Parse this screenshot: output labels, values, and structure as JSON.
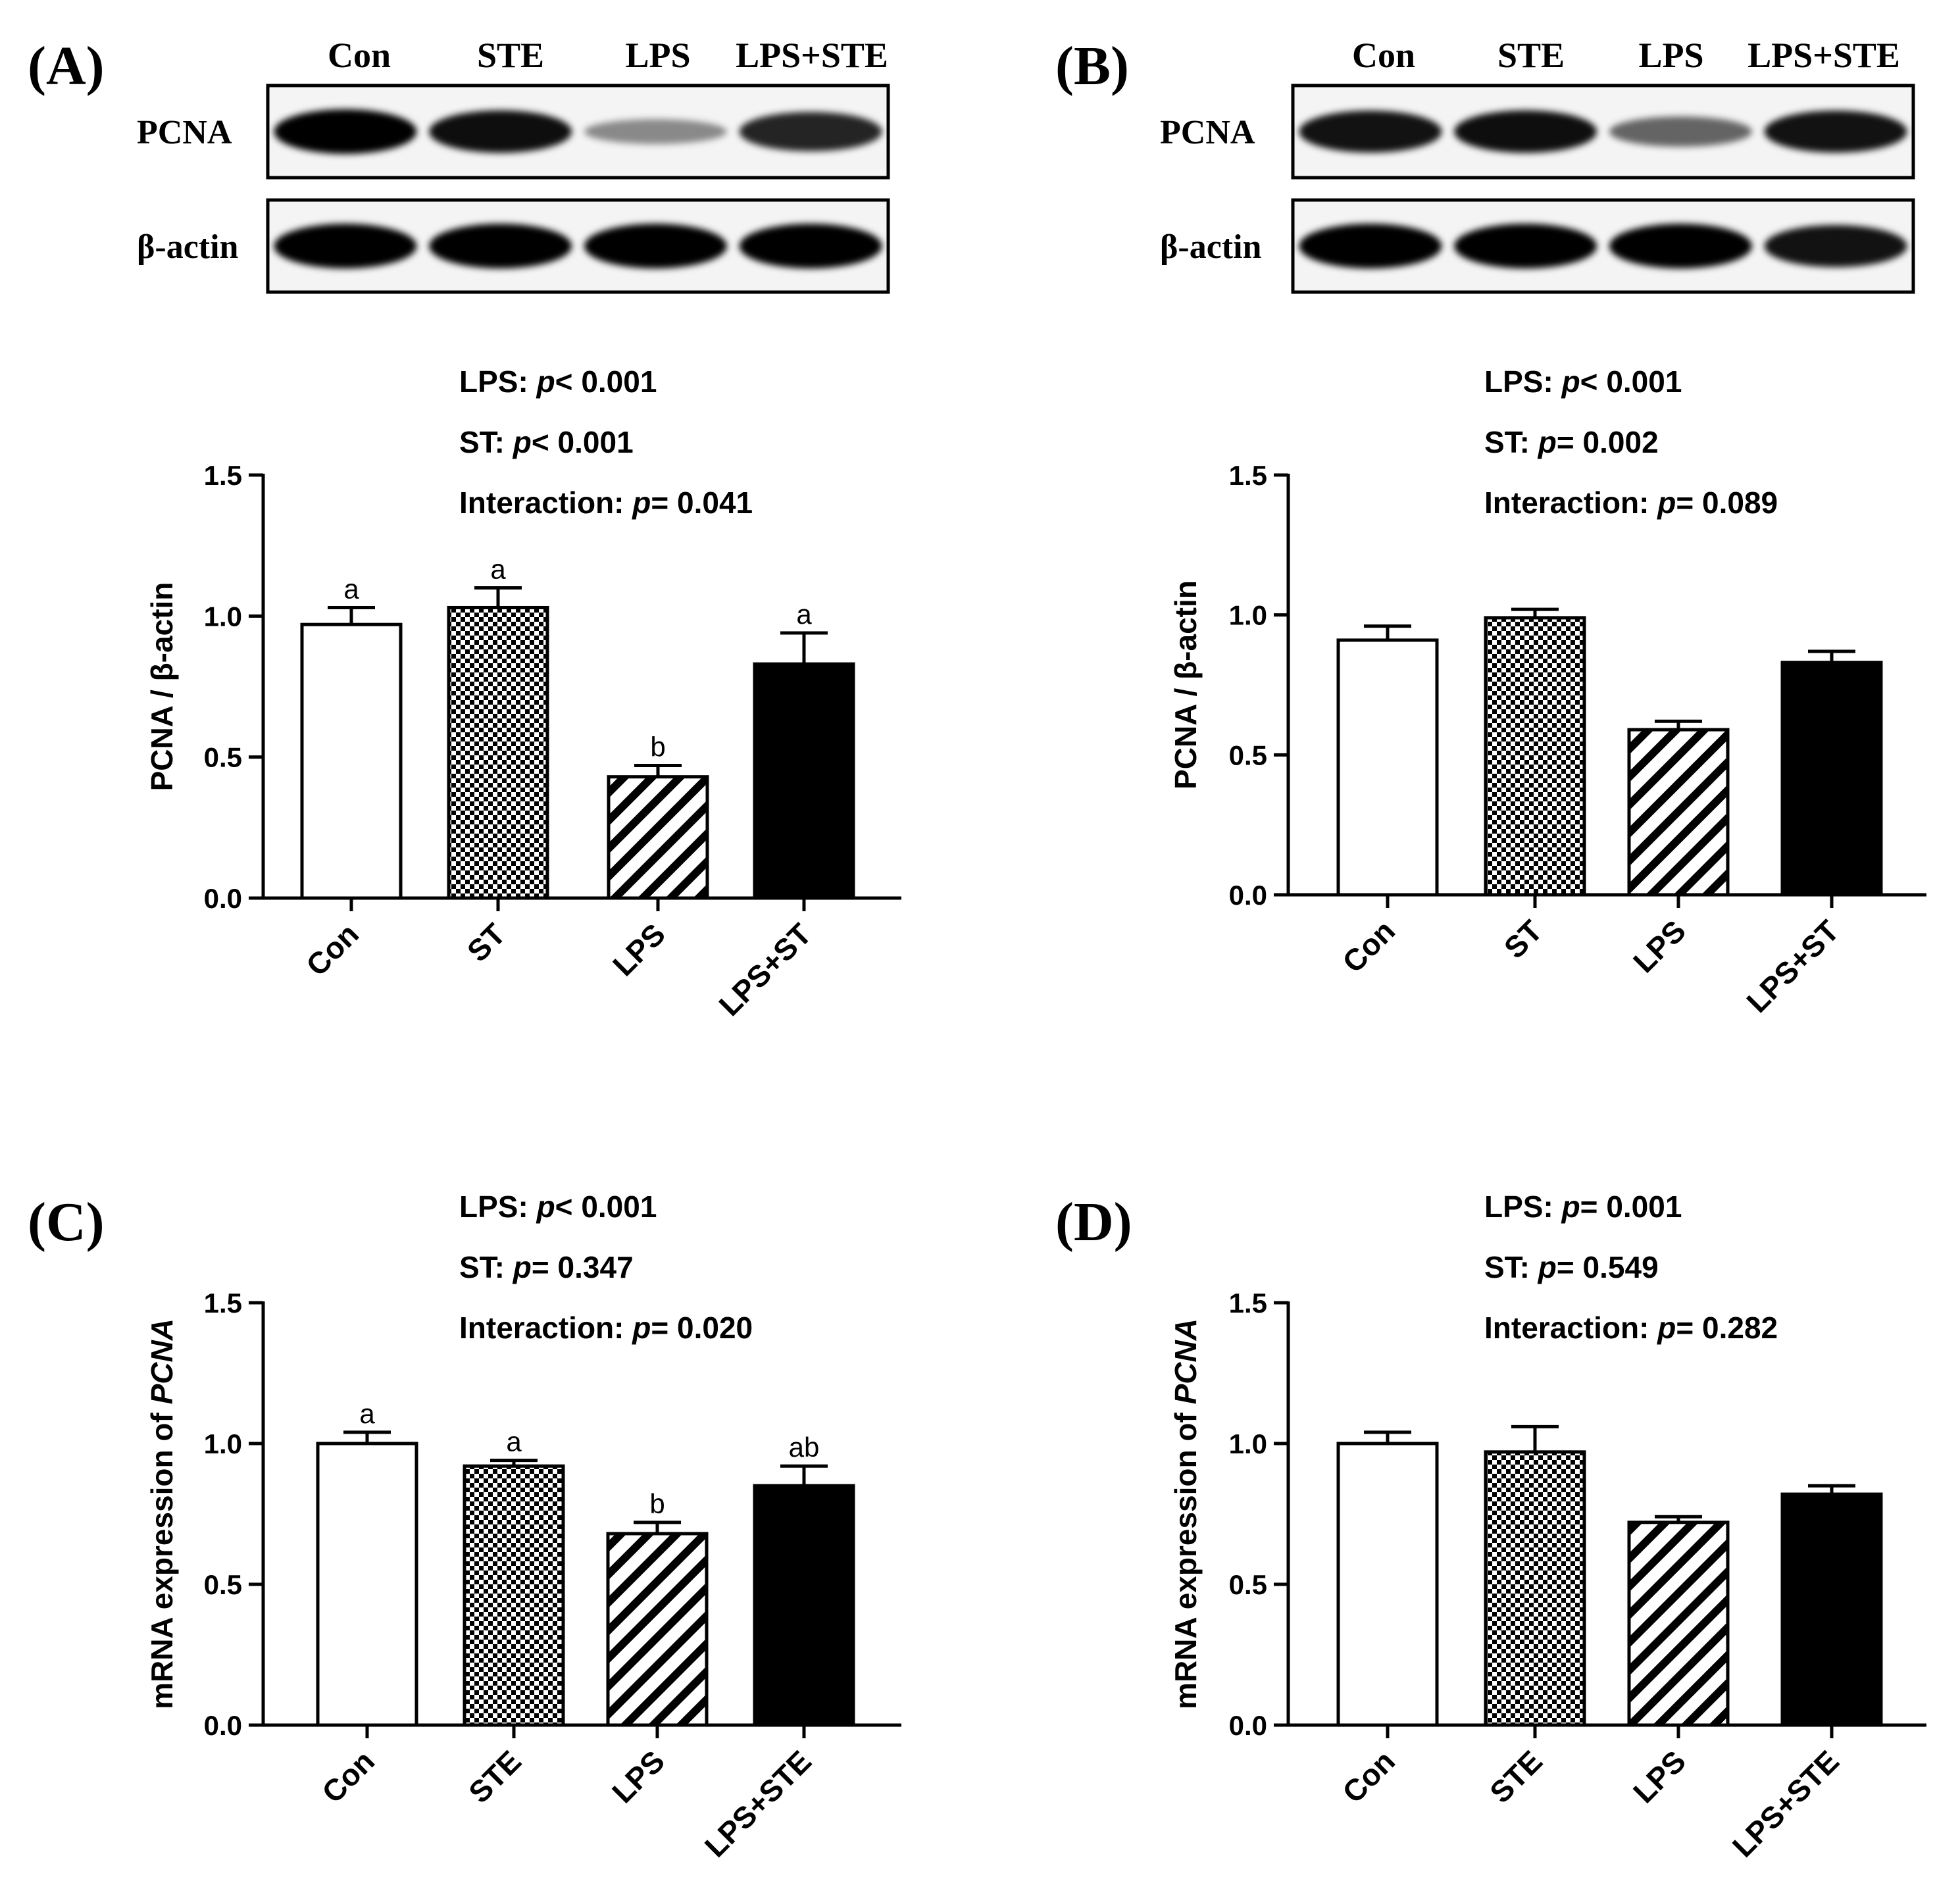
{
  "panels": [
    {
      "id": "A",
      "label": "(A)",
      "blot": {
        "lanes": [
          "Con",
          "STE",
          "LPS",
          "LPS+STE"
        ],
        "rows": [
          {
            "label": "PCNA",
            "intensity": [
              1.0,
              0.92,
              0.25,
              0.8
            ]
          },
          {
            "label": "β-actin",
            "intensity": [
              1.0,
              1.0,
              1.0,
              1.0
            ]
          }
        ]
      },
      "stats": [
        {
          "key": "LPS: ",
          "italic": "p",
          "val": "< 0.001"
        },
        {
          "key": "ST: ",
          "italic": "p",
          "val": "< 0.001"
        },
        {
          "key": "Interaction: ",
          "italic": "p",
          "val": "= 0.041"
        }
      ],
      "chart_data": {
        "type": "bar",
        "ylabel_parts": [
          {
            "t": "PCNA / β-actin",
            "i": false
          }
        ],
        "ylim": [
          0,
          1.5
        ],
        "yticks": [
          "0.0",
          "0.5",
          "1.0",
          "1.5"
        ],
        "categories": [
          "Con",
          "ST",
          "LPS",
          "LPS+ST"
        ],
        "values": [
          0.97,
          1.03,
          0.43,
          0.83
        ],
        "errors": [
          0.06,
          0.07,
          0.04,
          0.11
        ],
        "letters": [
          "a",
          "a",
          "b",
          "a"
        ],
        "patterns": [
          "white",
          "checker",
          "stripe",
          "black"
        ]
      }
    },
    {
      "id": "B",
      "label": "(B)",
      "blot": {
        "lanes": [
          "Con",
          "STE",
          "LPS",
          "LPS+STE"
        ],
        "rows": [
          {
            "label": "PCNA",
            "intensity": [
              0.9,
              0.92,
              0.45,
              0.9
            ]
          },
          {
            "label": "β-actin",
            "intensity": [
              1.0,
              1.0,
              1.0,
              0.9
            ]
          }
        ]
      },
      "stats": [
        {
          "key": "LPS: ",
          "italic": "p",
          "val": "< 0.001"
        },
        {
          "key": "ST: ",
          "italic": "p",
          "val": "= 0.002"
        },
        {
          "key": "Interaction: ",
          "italic": "p",
          "val": "= 0.089"
        }
      ],
      "chart_data": {
        "type": "bar",
        "ylabel_parts": [
          {
            "t": "PCNA / β-actin",
            "i": false
          }
        ],
        "ylim": [
          0,
          1.5
        ],
        "yticks": [
          "0.0",
          "0.5",
          "1.0",
          "1.5"
        ],
        "categories": [
          "Con",
          "ST",
          "LPS",
          "LPS+ST"
        ],
        "values": [
          0.91,
          0.99,
          0.59,
          0.83
        ],
        "errors": [
          0.05,
          0.03,
          0.03,
          0.04
        ],
        "letters": [
          "",
          "",
          "",
          ""
        ],
        "patterns": [
          "white",
          "checker",
          "stripe",
          "black"
        ]
      }
    },
    {
      "id": "C",
      "label": "(C)",
      "stats": [
        {
          "key": "LPS: ",
          "italic": "p",
          "val": "< 0.001"
        },
        {
          "key": "ST: ",
          "italic": "p",
          "val": "= 0.347"
        },
        {
          "key": "Interaction: ",
          "italic": "p",
          "val": "= 0.020"
        }
      ],
      "chart_data": {
        "type": "bar",
        "ylabel_parts": [
          {
            "t": "mRNA expression of ",
            "i": false
          },
          {
            "t": "PCNA",
            "i": true
          }
        ],
        "ylim": [
          0,
          1.5
        ],
        "yticks": [
          "0.0",
          "0.5",
          "1.0",
          "1.5"
        ],
        "categories": [
          "Con",
          "STE",
          "LPS",
          "LPS+STE"
        ],
        "values": [
          1.0,
          0.92,
          0.68,
          0.85
        ],
        "errors": [
          0.04,
          0.02,
          0.04,
          0.07
        ],
        "letters": [
          "a",
          "a",
          "b",
          "ab"
        ],
        "patterns": [
          "white",
          "checker",
          "stripe",
          "black"
        ]
      }
    },
    {
      "id": "D",
      "label": "(D)",
      "stats": [
        {
          "key": "LPS: ",
          "italic": "p",
          "val": "= 0.001"
        },
        {
          "key": "ST: ",
          "italic": "p",
          "val": "= 0.549"
        },
        {
          "key": "Interaction: ",
          "italic": "p",
          "val": "= 0.282"
        }
      ],
      "chart_data": {
        "type": "bar",
        "ylabel_parts": [
          {
            "t": "mRNA expression of ",
            "i": false
          },
          {
            "t": "PCNA",
            "i": true
          }
        ],
        "ylim": [
          0,
          1.5
        ],
        "yticks": [
          "0.0",
          "0.5",
          "1.0",
          "1.5"
        ],
        "categories": [
          "Con",
          "STE",
          "LPS",
          "LPS+STE"
        ],
        "values": [
          1.0,
          0.97,
          0.72,
          0.82
        ],
        "errors": [
          0.04,
          0.09,
          0.02,
          0.03
        ],
        "letters": [
          "",
          "",
          "",
          ""
        ],
        "patterns": [
          "white",
          "checker",
          "stripe",
          "black"
        ]
      }
    }
  ]
}
